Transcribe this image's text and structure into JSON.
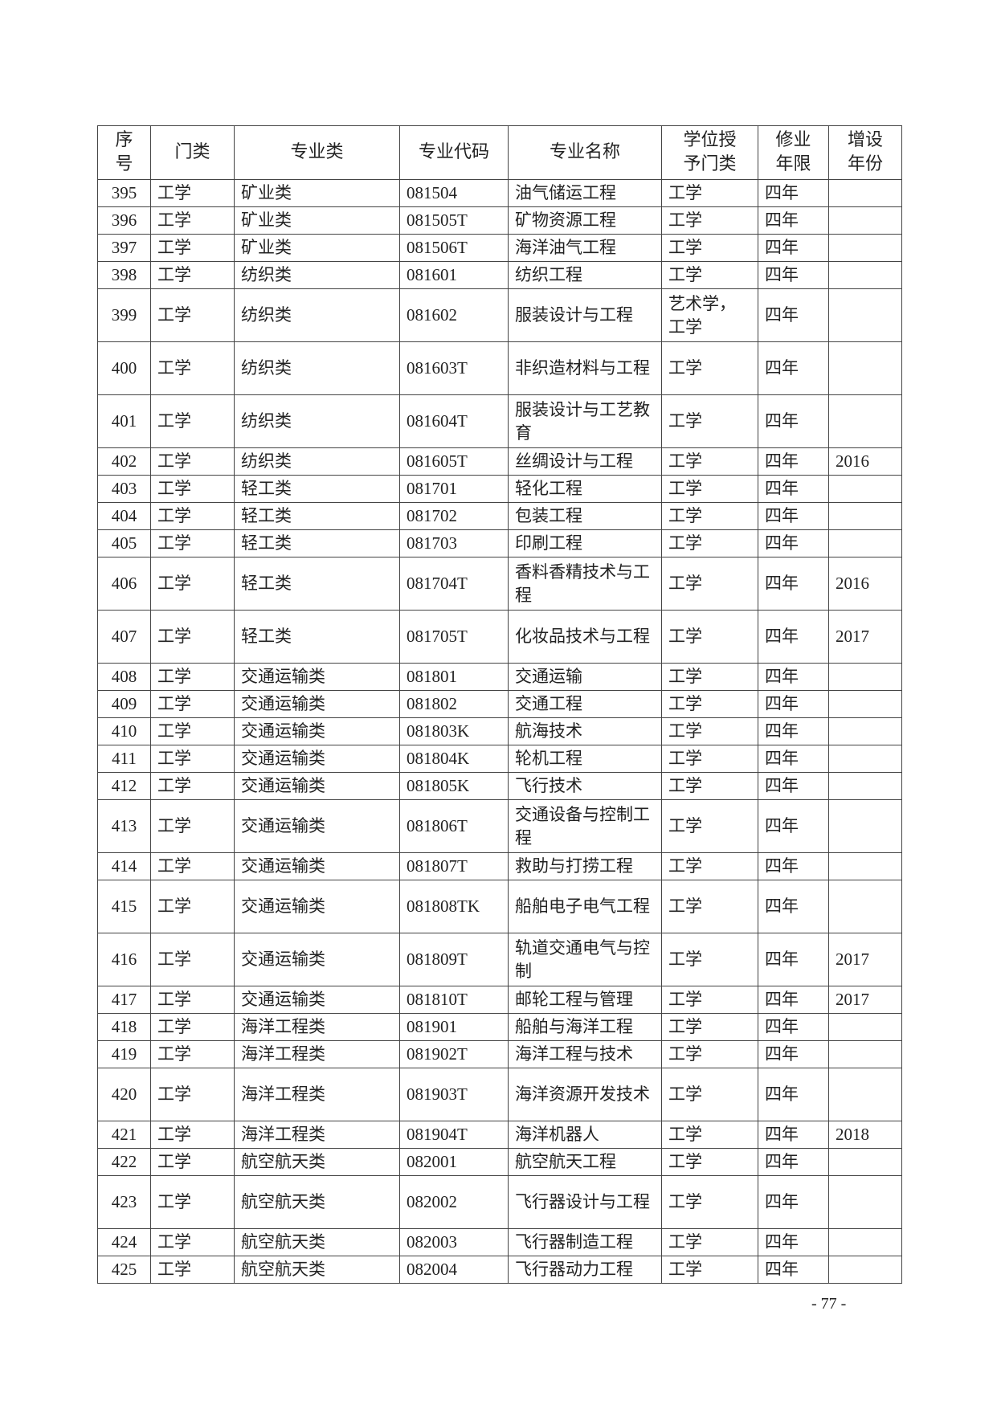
{
  "table": {
    "headers": [
      "序号",
      "门类",
      "专业类",
      "专业代码",
      "专业名称",
      "学位授予门类",
      "修业年限",
      "增设年份"
    ],
    "rows": [
      [
        "395",
        "工学",
        "矿业类",
        "081504",
        "油气储运工程",
        "工学",
        "四年",
        ""
      ],
      [
        "396",
        "工学",
        "矿业类",
        "081505T",
        "矿物资源工程",
        "工学",
        "四年",
        ""
      ],
      [
        "397",
        "工学",
        "矿业类",
        "081506T",
        "海洋油气工程",
        "工学",
        "四年",
        ""
      ],
      [
        "398",
        "工学",
        "纺织类",
        "081601",
        "纺织工程",
        "工学",
        "四年",
        ""
      ],
      [
        "399",
        "工学",
        "纺织类",
        "081602",
        "服装设计与工程",
        "艺术学，工学",
        "四年",
        ""
      ],
      [
        "400",
        "工学",
        "纺织类",
        "081603T",
        "非织造材料与工程",
        "工学",
        "四年",
        ""
      ],
      [
        "401",
        "工学",
        "纺织类",
        "081604T",
        "服装设计与工艺教育",
        "工学",
        "四年",
        ""
      ],
      [
        "402",
        "工学",
        "纺织类",
        "081605T",
        "丝绸设计与工程",
        "工学",
        "四年",
        "2016"
      ],
      [
        "403",
        "工学",
        "轻工类",
        "081701",
        "轻化工程",
        "工学",
        "四年",
        ""
      ],
      [
        "404",
        "工学",
        "轻工类",
        "081702",
        "包装工程",
        "工学",
        "四年",
        ""
      ],
      [
        "405",
        "工学",
        "轻工类",
        "081703",
        "印刷工程",
        "工学",
        "四年",
        ""
      ],
      [
        "406",
        "工学",
        "轻工类",
        "081704T",
        "香料香精技术与工程",
        "工学",
        "四年",
        "2016"
      ],
      [
        "407",
        "工学",
        "轻工类",
        "081705T",
        "化妆品技术与工程",
        "工学",
        "四年",
        "2017"
      ],
      [
        "408",
        "工学",
        "交通运输类",
        "081801",
        "交通运输",
        "工学",
        "四年",
        ""
      ],
      [
        "409",
        "工学",
        "交通运输类",
        "081802",
        "交通工程",
        "工学",
        "四年",
        ""
      ],
      [
        "410",
        "工学",
        "交通运输类",
        "081803K",
        "航海技术",
        "工学",
        "四年",
        ""
      ],
      [
        "411",
        "工学",
        "交通运输类",
        "081804K",
        "轮机工程",
        "工学",
        "四年",
        ""
      ],
      [
        "412",
        "工学",
        "交通运输类",
        "081805K",
        "飞行技术",
        "工学",
        "四年",
        ""
      ],
      [
        "413",
        "工学",
        "交通运输类",
        "081806T",
        "交通设备与控制工程",
        "工学",
        "四年",
        ""
      ],
      [
        "414",
        "工学",
        "交通运输类",
        "081807T",
        "救助与打捞工程",
        "工学",
        "四年",
        ""
      ],
      [
        "415",
        "工学",
        "交通运输类",
        "081808TK",
        "船舶电子电气工程",
        "工学",
        "四年",
        ""
      ],
      [
        "416",
        "工学",
        "交通运输类",
        "081809T",
        "轨道交通电气与控制",
        "工学",
        "四年",
        "2017"
      ],
      [
        "417",
        "工学",
        "交通运输类",
        "081810T",
        "邮轮工程与管理",
        "工学",
        "四年",
        "2017"
      ],
      [
        "418",
        "工学",
        "海洋工程类",
        "081901",
        "船舶与海洋工程",
        "工学",
        "四年",
        ""
      ],
      [
        "419",
        "工学",
        "海洋工程类",
        "081902T",
        "海洋工程与技术",
        "工学",
        "四年",
        ""
      ],
      [
        "420",
        "工学",
        "海洋工程类",
        "081903T",
        "海洋资源开发技术",
        "工学",
        "四年",
        ""
      ],
      [
        "421",
        "工学",
        "海洋工程类",
        "081904T",
        "海洋机器人",
        "工学",
        "四年",
        "2018"
      ],
      [
        "422",
        "工学",
        "航空航天类",
        "082001",
        "航空航天工程",
        "工学",
        "四年",
        ""
      ],
      [
        "423",
        "工学",
        "航空航天类",
        "082002",
        "飞行器设计与工程",
        "工学",
        "四年",
        ""
      ],
      [
        "424",
        "工学",
        "航空航天类",
        "082003",
        "飞行器制造工程",
        "工学",
        "四年",
        ""
      ],
      [
        "425",
        "工学",
        "航空航天类",
        "082004",
        "飞行器动力工程",
        "工学",
        "四年",
        ""
      ]
    ]
  },
  "page_number": "- 77 -"
}
